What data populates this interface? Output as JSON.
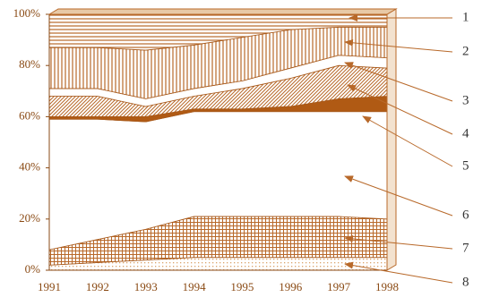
{
  "chart_data": {
    "type": "area",
    "stacked": true,
    "categories": [
      "1991",
      "1992",
      "1993",
      "1994",
      "1995",
      "1996",
      "1997",
      "1998"
    ],
    "series": [
      {
        "name": "8",
        "color": "#d9a36b",
        "values": [
          2,
          3,
          4,
          5,
          5,
          5,
          5,
          5
        ]
      },
      {
        "name": "7",
        "color": "#b8692a",
        "values": [
          6,
          9,
          12,
          16,
          16,
          16,
          16,
          15
        ]
      },
      {
        "name": "6",
        "color": "#ffffff",
        "values": [
          51,
          47,
          42,
          41,
          41,
          41,
          41,
          42
        ]
      },
      {
        "name": "5",
        "color": "#b05a14",
        "values": [
          1,
          1,
          2,
          1,
          1,
          2,
          5,
          6
        ]
      },
      {
        "name": "4",
        "color": "#b8692a",
        "values": [
          8,
          8,
          4,
          5,
          8,
          11,
          13,
          11
        ]
      },
      {
        "name": "3",
        "color": "#ffffff",
        "values": [
          3,
          3,
          3,
          3,
          3,
          4,
          4,
          4
        ]
      },
      {
        "name": "2",
        "color": "#b8692a",
        "values": [
          16,
          16,
          19,
          17,
          17,
          15,
          11,
          12
        ]
      },
      {
        "name": "1",
        "color": "#b8692a",
        "values": [
          13,
          13,
          14,
          12,
          9,
          6,
          5,
          5
        ]
      }
    ],
    "ylim": [
      0,
      100
    ],
    "yticks": [
      {
        "value": 0,
        "label": "0%"
      },
      {
        "value": 20,
        "label": "20%"
      },
      {
        "value": 40,
        "label": "40%"
      },
      {
        "value": 60,
        "label": "60%"
      },
      {
        "value": 80,
        "label": "80%"
      },
      {
        "value": 100,
        "label": "100%"
      }
    ],
    "grid": false
  }
}
